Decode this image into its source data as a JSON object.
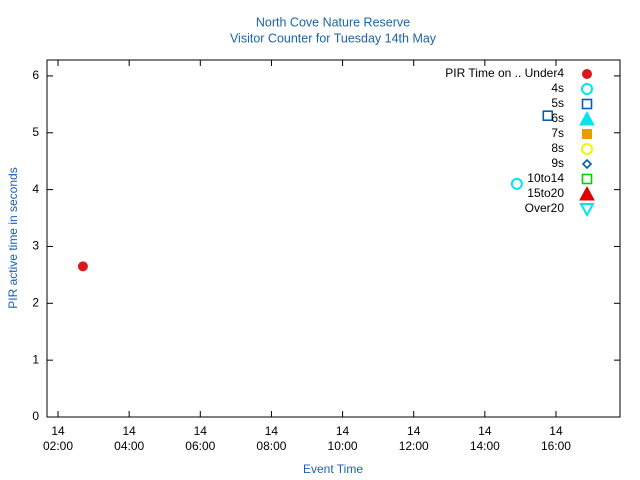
{
  "chart_data": {
    "type": "scatter",
    "title": "North Cove Nature Reserve",
    "subtitle": "Visitor Counter for Tuesday 14th May",
    "x_label": "Event Time",
    "y_label": "PIR active time in seconds",
    "xlim": [
      1.69,
      17.8
    ],
    "ylim": [
      0,
      6.28
    ],
    "xticks": [
      {
        "value": 2,
        "label": "14\n02:00"
      },
      {
        "value": 4,
        "label": "14\n04:00"
      },
      {
        "value": 6,
        "label": "14\n06:00"
      },
      {
        "value": 8,
        "label": "14\n08:00"
      },
      {
        "value": 10,
        "label": "14\n10:00"
      },
      {
        "value": 12,
        "label": "14\n12:00"
      },
      {
        "value": 14,
        "label": "14\n14:00"
      },
      {
        "value": 16,
        "label": "14\n16:00"
      }
    ],
    "yticks": [
      0,
      1,
      2,
      3,
      4,
      5,
      6
    ],
    "legend": "top-right",
    "series": [
      {
        "name": "PIR Time on .. Under4",
        "color": "#d7191c",
        "marker": "filled-circle",
        "x": [
          2.7
        ],
        "values": [
          2.65
        ]
      },
      {
        "name": "4s",
        "color": "#00e5ee",
        "marker": "open-circle",
        "x": [
          14.9
        ],
        "values": [
          4.1
        ]
      },
      {
        "name": "5s",
        "color": "#0060ad",
        "marker": "open-square",
        "x": [
          15.77
        ],
        "values": [
          5.3
        ]
      },
      {
        "name": "6s",
        "color": "#00e5ee",
        "marker": "filled-triangle",
        "x": [],
        "values": []
      },
      {
        "name": "7s",
        "color": "#e69f00",
        "marker": "filled-square",
        "x": [],
        "values": []
      },
      {
        "name": "8s",
        "color": "#f5f500",
        "marker": "open-circle",
        "x": [],
        "values": []
      },
      {
        "name": "9s",
        "color": "#0060ad",
        "marker": "open-diamond",
        "x": [],
        "values": []
      },
      {
        "name": "10to14",
        "color": "#00d000",
        "marker": "open-square",
        "x": [],
        "values": []
      },
      {
        "name": "15to20",
        "color": "#e00000",
        "marker": "filled-triangle",
        "x": [],
        "values": []
      },
      {
        "name": "Over20",
        "color": "#00e5ee",
        "marker": "open-down-triangle",
        "x": [],
        "values": []
      }
    ]
  }
}
